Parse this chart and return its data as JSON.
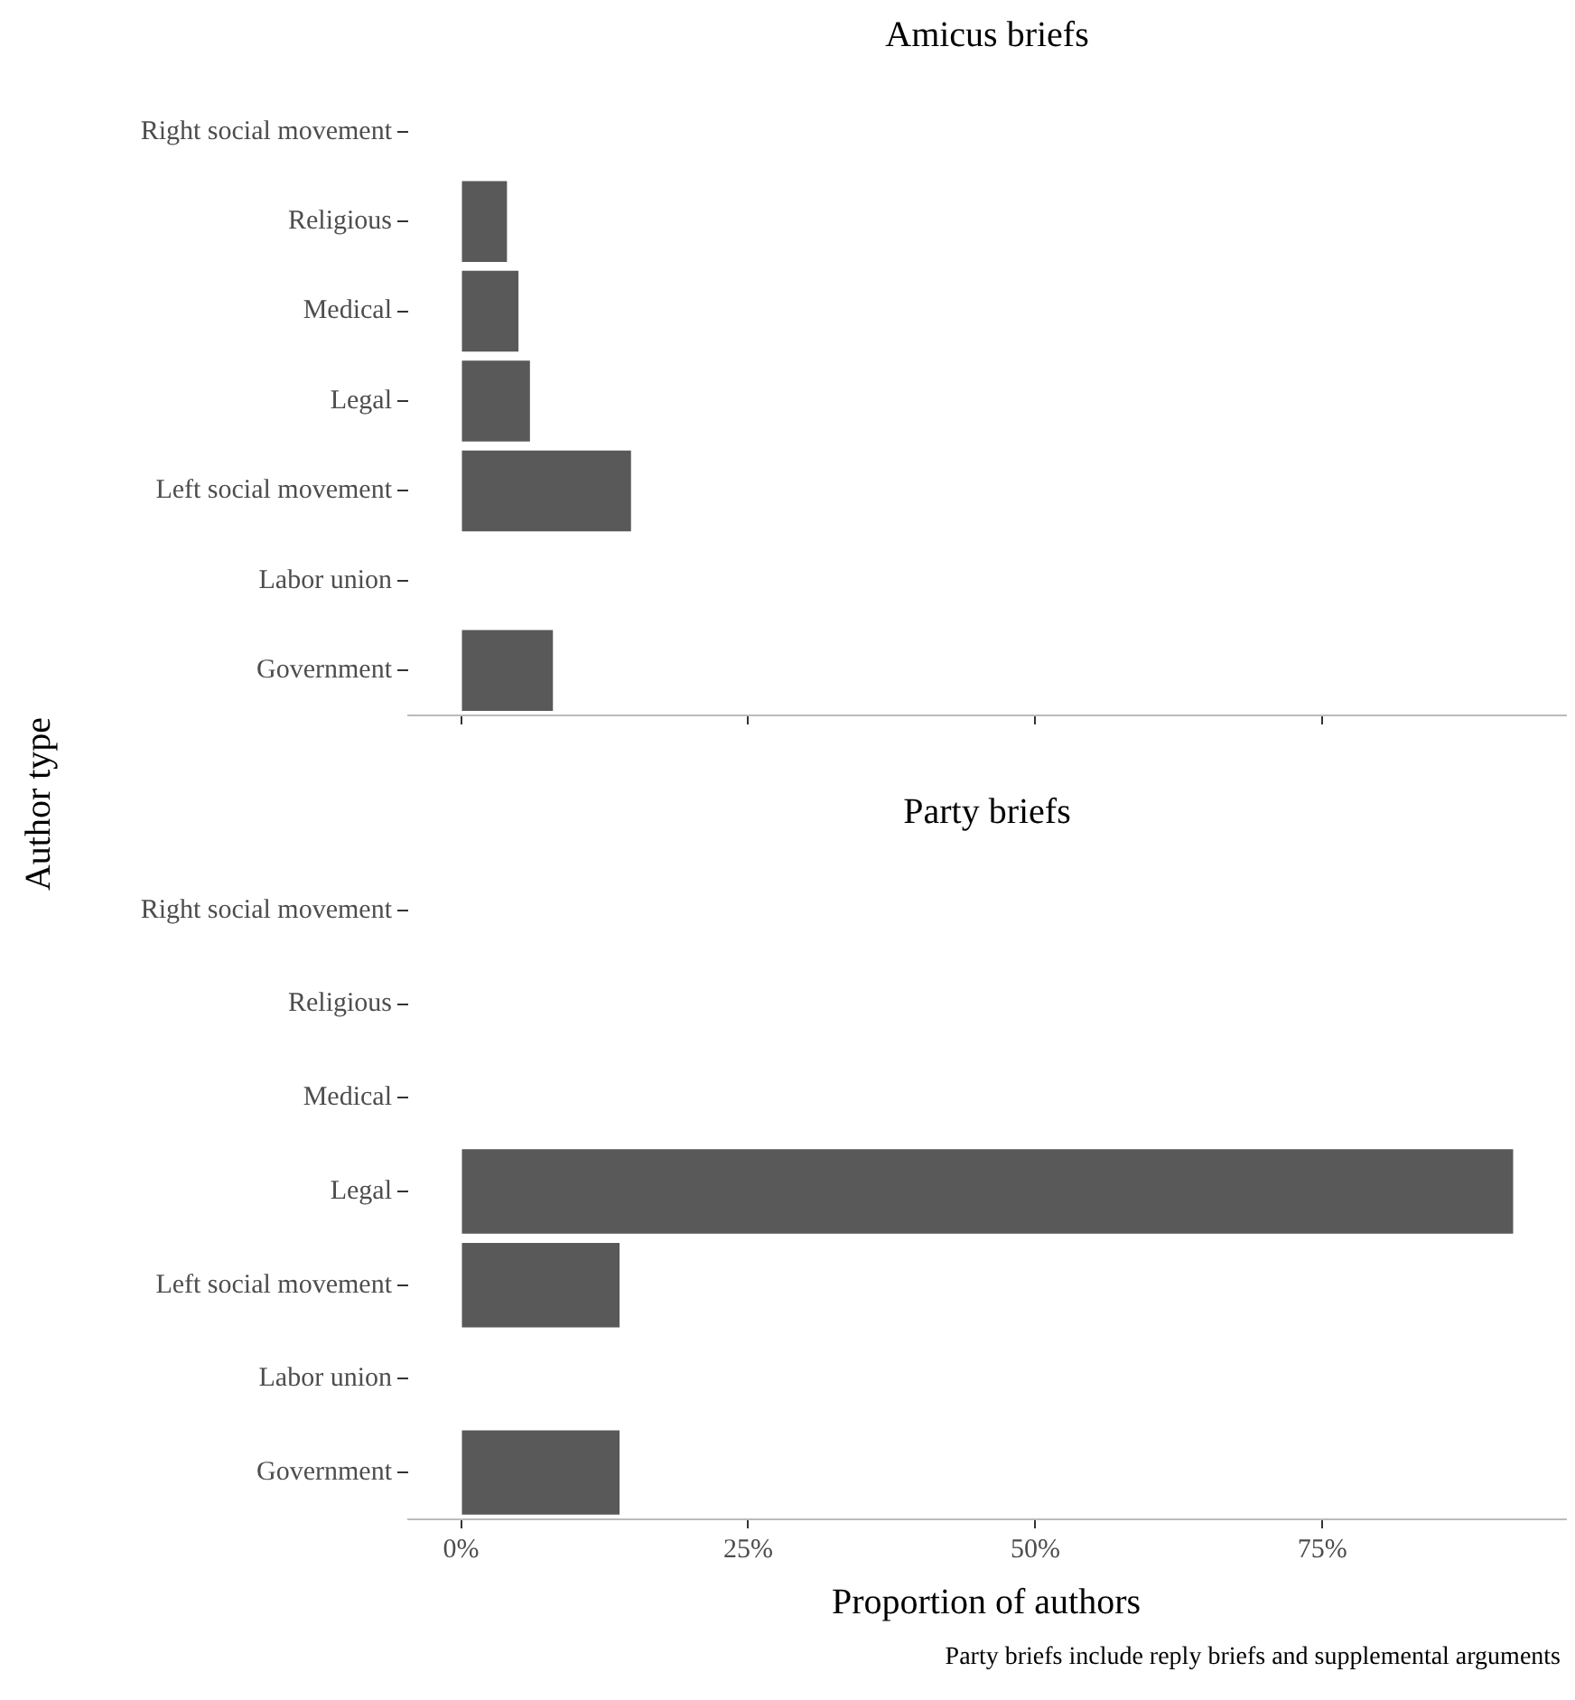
{
  "chart_data": [
    {
      "type": "bar",
      "orientation": "horizontal",
      "title": "Amicus briefs",
      "ylabel": "Author type",
      "categories": [
        "Right social movement",
        "Religious",
        "Medical",
        "Legal",
        "Left social movement",
        "Labor union",
        "Government"
      ],
      "values": [
        0,
        4.0,
        5.0,
        6.0,
        14.8,
        0,
        8.0
      ],
      "color": "#595959",
      "xlim": [
        -4.6,
        96.2
      ],
      "xticks": [
        {
          "value": 0,
          "label": null
        },
        {
          "value": 25,
          "label": null
        },
        {
          "value": 50,
          "label": null
        },
        {
          "value": 75,
          "label": null
        }
      ],
      "tick_labels": "y"
    },
    {
      "type": "bar",
      "orientation": "horizontal",
      "title": "Party briefs",
      "xlabel": "Proportion of authors",
      "categories": [
        "Right social movement",
        "Religious",
        "Medical",
        "Legal",
        "Left social movement",
        "Labor union",
        "Government"
      ],
      "values": [
        0,
        0,
        0,
        91.6,
        13.8,
        0,
        13.8
      ],
      "color": "#595959",
      "xlim": [
        -4.6,
        96.2
      ],
      "xticks": [
        {
          "value": 0,
          "label": "0%"
        },
        {
          "value": 25,
          "label": "25%"
        },
        {
          "value": 50,
          "label": "50%"
        },
        {
          "value": 75,
          "label": "75%"
        }
      ],
      "annotations": [
        "Party briefs include reply briefs and supplemental arguments"
      ]
    }
  ]
}
